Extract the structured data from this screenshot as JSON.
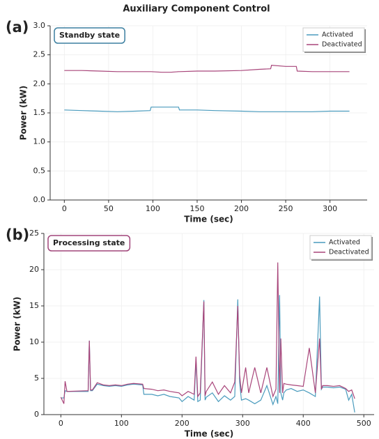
{
  "title": "Auxiliary Component Control",
  "chart_data": [
    {
      "type": "line",
      "panel_label": "(a)",
      "annotation": "Standby state",
      "annotation_color": "#3b7fa0",
      "x_label": "Time (sec)",
      "y_label": "Power (kW)",
      "grid": true,
      "legend": "upper right",
      "xlim": [
        -16,
        342
      ],
      "ylim": [
        0,
        3
      ],
      "xticks": [
        0,
        50,
        100,
        150,
        200,
        250,
        300
      ],
      "yticks": [
        {
          "value": 0,
          "label": "0.0"
        },
        0.5,
        {
          "value": 1,
          "label": "1.0"
        },
        1.5,
        {
          "value": 2,
          "label": "2.0"
        },
        2.5,
        {
          "value": 3,
          "label": "3.0"
        }
      ],
      "x": [
        0,
        20,
        40,
        60,
        80,
        97,
        98,
        110,
        120,
        129,
        130,
        150,
        170,
        200,
        220,
        233,
        234,
        250,
        262,
        263,
        280,
        300,
        322
      ],
      "series": [
        {
          "name": "Activated",
          "color": "#4a9bbd",
          "values": [
            1.55,
            1.54,
            1.53,
            1.52,
            1.53,
            1.54,
            1.6,
            1.6,
            1.6,
            1.6,
            1.55,
            1.55,
            1.54,
            1.53,
            1.52,
            1.52,
            1.52,
            1.52,
            1.52,
            1.52,
            1.52,
            1.53,
            1.53
          ]
        },
        {
          "name": "Deactivated",
          "color": "#a8457a",
          "values": [
            2.23,
            2.23,
            2.22,
            2.21,
            2.21,
            2.21,
            2.21,
            2.2,
            2.2,
            2.21,
            2.21,
            2.22,
            2.22,
            2.23,
            2.25,
            2.26,
            2.32,
            2.3,
            2.3,
            2.22,
            2.21,
            2.21,
            2.21
          ]
        }
      ]
    },
    {
      "type": "line",
      "panel_label": "(b)",
      "annotation": "Processing state",
      "annotation_color": "#a0457a",
      "x_label": "Time (sec)",
      "y_label": "Power (kW)",
      "grid": true,
      "legend": "upper right",
      "xlim": [
        -28,
        517
      ],
      "ylim": [
        0,
        25
      ],
      "xticks": [
        0,
        100,
        200,
        300,
        400,
        500
      ],
      "yticks": [
        0,
        5,
        10,
        15,
        20,
        25
      ],
      "x": [
        0,
        5,
        7,
        10,
        45,
        47,
        49,
        52,
        60,
        70,
        80,
        90,
        100,
        110,
        120,
        135,
        137,
        150,
        160,
        170,
        180,
        195,
        200,
        210,
        220,
        223,
        226,
        230,
        236,
        238,
        240,
        250,
        260,
        270,
        280,
        287,
        292,
        295,
        298,
        305,
        310,
        320,
        330,
        340,
        350,
        355,
        358,
        361,
        363,
        366,
        368,
        372,
        380,
        390,
        400,
        410,
        420,
        427,
        430,
        432,
        440,
        450,
        460,
        470,
        475,
        480,
        485
      ],
      "series": [
        {
          "name": "Activated",
          "color": "#4a9bbd",
          "values": [
            2.3,
            2.3,
            3.3,
            3.2,
            3.2,
            10.2,
            3.3,
            3.3,
            4.2,
            4.0,
            3.9,
            4.0,
            3.9,
            4.1,
            4.2,
            4.1,
            2.8,
            2.8,
            2.6,
            2.8,
            2.5,
            2.3,
            1.8,
            2.5,
            2.0,
            7.5,
            1.8,
            2.0,
            15.8,
            2.0,
            2.4,
            3.0,
            1.8,
            2.6,
            2.0,
            2.5,
            15.9,
            4.5,
            2.0,
            2.2,
            2.0,
            1.5,
            2.0,
            4.0,
            1.4,
            2.5,
            1.5,
            16.5,
            3.0,
            2.0,
            3.0,
            3.4,
            3.6,
            3.2,
            3.4,
            3.0,
            2.5,
            16.3,
            3.5,
            3.8,
            3.8,
            3.7,
            3.8,
            3.5,
            2.0,
            2.8,
            0.3
          ]
        },
        {
          "name": "Deactivated",
          "color": "#a8457a",
          "values": [
            2.4,
            1.5,
            4.6,
            3.2,
            3.3,
            10.2,
            3.4,
            3.4,
            4.4,
            4.1,
            4.0,
            4.1,
            4.0,
            4.2,
            4.3,
            4.2,
            3.6,
            3.5,
            3.3,
            3.4,
            3.2,
            3.0,
            2.6,
            3.2,
            2.8,
            8.0,
            2.5,
            3.0,
            15.6,
            2.6,
            3.2,
            4.5,
            2.8,
            4.0,
            3.0,
            4.5,
            15.0,
            5.5,
            3.0,
            6.5,
            3.0,
            6.5,
            3.0,
            6.5,
            2.5,
            3.5,
            21.0,
            3.0,
            10.5,
            3.0,
            4.3,
            4.2,
            4.1,
            4.0,
            3.9,
            9.2,
            3.0,
            10.5,
            3.5,
            4.0,
            4.0,
            3.9,
            4.0,
            3.6,
            3.2,
            3.4,
            2.2
          ]
        }
      ]
    }
  ]
}
